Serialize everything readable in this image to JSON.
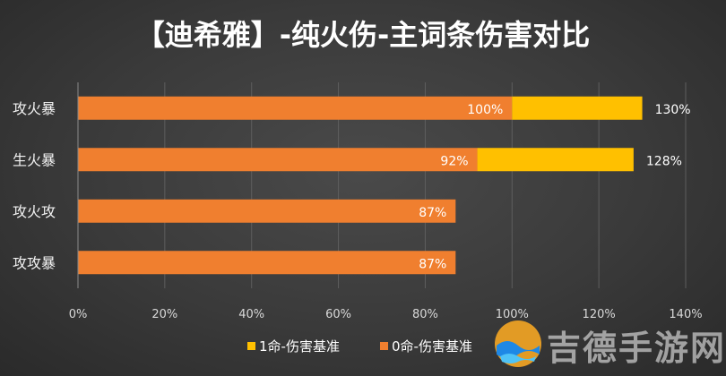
{
  "chart_data": {
    "type": "bar",
    "orientation": "horizontal",
    "stacked": true,
    "title": "【迪希雅】-纯火伤-主词条伤害对比",
    "categories": [
      "攻火暴",
      "生火暴",
      "攻火攻",
      "攻攻暴"
    ],
    "series": [
      {
        "name": "0命-伤害基准",
        "values": [
          100,
          92,
          87,
          87
        ],
        "labels": [
          "100%",
          "92%",
          "87%",
          "87%"
        ],
        "color": "#f07f2f"
      },
      {
        "name": "1命-伤害基准",
        "values": [
          30,
          36,
          0,
          0
        ],
        "labels": [
          "130%",
          "128%",
          "",
          ""
        ],
        "color": "#ffc000"
      }
    ],
    "xlim": [
      0,
      140
    ],
    "x_ticks": [
      "0%",
      "20%",
      "40%",
      "60%",
      "80%",
      "100%",
      "120%",
      "140%"
    ],
    "grid": true,
    "legend_position": "bottom-right"
  },
  "watermark": {
    "text": "吉德手游网"
  }
}
